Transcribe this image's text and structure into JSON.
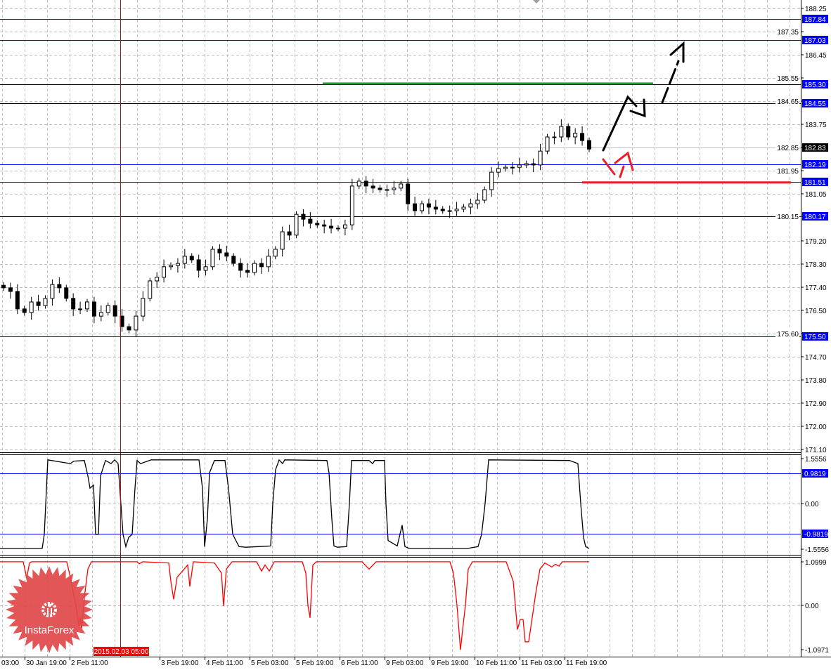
{
  "colors": {
    "level_blue": "#0000ff",
    "level_dark": "#000000",
    "green_target": "#22a030",
    "red_support": "#ee1c24",
    "bull_bear_candle": "#000000",
    "osc1": "#000000",
    "osc2": "#ff0000",
    "crosshair": "#dd0000",
    "logo": "#e0484a"
  },
  "logo": {
    "text": "InstaForex",
    "icon": "gear-person-icon"
  },
  "crosshair": {
    "date_label": "2015.02.03 05:00"
  },
  "chart_data": [
    {
      "type": "candlestick",
      "title": "",
      "ylim": [
        171.1,
        188.25
      ],
      "grid": true,
      "y_ticks": [
        "188.25",
        "187.35",
        "186.45",
        "185.55",
        "184.65",
        "183.75",
        "182.85",
        "181.95",
        "181.05",
        "180.15",
        "179.20",
        "178.30",
        "177.40",
        "176.50",
        "175.60",
        "174.70",
        "173.80",
        "172.90",
        "172.00",
        "171.10"
      ],
      "x_tick_labels": [
        "03:00",
        "30 Jan 19:00",
        "2 Feb 11:00",
        "3 Feb 19:00",
        "4 Feb 11:00",
        "5 Feb 03:00",
        "5 Feb 19:00",
        "6 Feb 11:00",
        "9 Feb 03:00",
        "9 Feb 19:00",
        "10 Feb 11:00",
        "11 Feb 03:00",
        "11 Feb 19:00"
      ],
      "closes": [
        177.38,
        177.24,
        176.56,
        176.42,
        176.83,
        176.69,
        176.97,
        177.51,
        177.38,
        176.97,
        176.56,
        176.56,
        176.83,
        176.28,
        176.42,
        176.69,
        176.28,
        175.87,
        175.74,
        176.28,
        176.97,
        177.65,
        177.79,
        178.2,
        178.25,
        178.33,
        178.61,
        178.47,
        178.06,
        178.2,
        178.88,
        178.74,
        178.61,
        178.33,
        178.06,
        177.98,
        178.33,
        178.2,
        178.61,
        178.88,
        179.56,
        179.43,
        180.24,
        180.05,
        179.89,
        179.83,
        179.78,
        179.7,
        179.7,
        179.83,
        181.34,
        181.53,
        181.34,
        181.26,
        181.2,
        181.2,
        181.26,
        181.42,
        180.65,
        180.38,
        180.65,
        180.52,
        180.44,
        180.38,
        180.38,
        180.44,
        180.52,
        180.65,
        180.79,
        181.2,
        181.88,
        182.02,
        182.07,
        182.07,
        182.16,
        182.21,
        182.16,
        182.7,
        183.25,
        183.25,
        183.66,
        183.25,
        183.39,
        183.11,
        182.78
      ],
      "levels": [
        {
          "value": 187.84,
          "label": "187.84",
          "line": "blue"
        },
        {
          "value": 187.03,
          "label": "187.03",
          "line": "blue"
        },
        {
          "value": 185.3,
          "label": "185.30",
          "line": "dark"
        },
        {
          "value": 184.55,
          "label": "184.55",
          "line": "dark"
        },
        {
          "value": 182.19,
          "label": "182.19",
          "line": "blue"
        },
        {
          "value": 181.51,
          "label": "181.51",
          "line": "blue"
        },
        {
          "value": 180.17,
          "label": "180.17",
          "line": "dark"
        },
        {
          "value": 175.5,
          "label": "175.50",
          "line": "blue"
        }
      ],
      "current_price": {
        "value": 182.83,
        "label": "182.83"
      },
      "target_line": {
        "value": 185.33,
        "color": "green"
      },
      "support_line": {
        "value": 181.48,
        "color": "red"
      },
      "annotations": [
        "black solid arrow up to 185.30 then pullback",
        "black dashed arrow up to 187.03",
        "red arrow bounce above 182.19"
      ]
    },
    {
      "type": "line",
      "ylim": [
        -1.5556,
        1.5556
      ],
      "y_ticks": [
        "1.5556",
        "0.00",
        "-1.5556"
      ],
      "levels": [
        {
          "value": 0.9819,
          "label": "0.9819"
        },
        {
          "value": -0.9819,
          "label": "-0.9819"
        }
      ],
      "series": [
        {
          "points": [
            [
              0,
              -1.46
            ],
            [
              60,
              -1.46
            ],
            [
              63,
              -1.0
            ],
            [
              68,
              1.42
            ],
            [
              100,
              1.3
            ],
            [
              105,
              1.38
            ],
            [
              120,
              1.4
            ],
            [
              125,
              0.9
            ],
            [
              128,
              0.5
            ],
            [
              133,
              0.6
            ],
            [
              136,
              -1.0
            ],
            [
              140,
              -1.0
            ],
            [
              143,
              0.9
            ],
            [
              150,
              1.4
            ],
            [
              158,
              1.3
            ],
            [
              163,
              1.42
            ],
            [
              168,
              1.3
            ],
            [
              171,
              0.3
            ],
            [
              175,
              -1.0
            ],
            [
              179,
              -1.4
            ],
            [
              183,
              -1.1
            ],
            [
              188,
              -1.0
            ],
            [
              192,
              0.5
            ],
            [
              195,
              1.4
            ],
            [
              200,
              1.3
            ],
            [
              215,
              1.42
            ],
            [
              283,
              1.42
            ],
            [
              288,
              0.5
            ],
            [
              291,
              -1.4
            ],
            [
              295,
              -0.5
            ],
            [
              298,
              1.0
            ],
            [
              305,
              1.4
            ],
            [
              320,
              1.4
            ],
            [
              325,
              0.5
            ],
            [
              331,
              -1.0
            ],
            [
              340,
              -1.4
            ],
            [
              350,
              -1.42
            ],
            [
              385,
              -1.38
            ],
            [
              388,
              0
            ],
            [
              392,
              1.1
            ],
            [
              397,
              1.42
            ],
            [
              402,
              1.3
            ],
            [
              405,
              1.42
            ],
            [
              465,
              1.4
            ],
            [
              468,
              1.0
            ],
            [
              472,
              -0.5
            ],
            [
              475,
              -1.38
            ],
            [
              480,
              -1.42
            ],
            [
              493,
              -1.4
            ],
            [
              497,
              0
            ],
            [
              500,
              1.4
            ],
            [
              525,
              1.4
            ],
            [
              530,
              1.3
            ],
            [
              533,
              1.4
            ],
            [
              547,
              1.4
            ],
            [
              549,
              0
            ],
            [
              552,
              -1.2
            ],
            [
              565,
              -1.38
            ],
            [
              572,
              -0.7
            ],
            [
              576,
              -1.4
            ],
            [
              582,
              -1.46
            ],
            [
              665,
              -1.46
            ],
            [
              680,
              -1.4
            ],
            [
              685,
              -1.0
            ],
            [
              690,
              0
            ],
            [
              695,
              1.42
            ],
            [
              810,
              1.4
            ],
            [
              822,
              1.3
            ],
            [
              826,
              0
            ],
            [
              830,
              -1.1
            ],
            [
              833,
              -1.4
            ],
            [
              838,
              -1.46
            ]
          ]
        }
      ]
    },
    {
      "type": "line",
      "ylim": [
        -1.0971,
        1.0999
      ],
      "y_ticks": [
        "1.0999",
        "0.00",
        "-1.0971"
      ],
      "series": [
        {
          "points": [
            [
              0,
              1.08
            ],
            [
              33,
              1.08
            ],
            [
              38,
              0.68
            ],
            [
              42,
              1.05
            ],
            [
              45,
              1.08
            ],
            [
              95,
              1.08
            ],
            [
              100,
              0.7
            ],
            [
              108,
              0.0
            ],
            [
              112,
              -0.5
            ],
            [
              114,
              -0.3
            ],
            [
              116,
              -0.57
            ],
            [
              120,
              0.2
            ],
            [
              125,
              0.9
            ],
            [
              130,
              1.08
            ],
            [
              195,
              1.08
            ],
            [
              198,
              1.03
            ],
            [
              203,
              1.08
            ],
            [
              240,
              1.05
            ],
            [
              243,
              0.6
            ],
            [
              247,
              0.15
            ],
            [
              252,
              0.7
            ],
            [
              267,
              1.0
            ],
            [
              270,
              0.47
            ],
            [
              275,
              1.08
            ],
            [
              305,
              1.05
            ],
            [
              315,
              0.8
            ],
            [
              318,
              -0.02
            ],
            [
              322,
              0.9
            ],
            [
              330,
              1.08
            ],
            [
              365,
              1.08
            ],
            [
              372,
              0.85
            ],
            [
              377,
              1.0
            ],
            [
              383,
              0.85
            ],
            [
              390,
              1.08
            ],
            [
              430,
              1.08
            ],
            [
              435,
              0.8
            ],
            [
              438,
              0.0
            ],
            [
              441,
              -0.31
            ],
            [
              445,
              1.0
            ],
            [
              450,
              1.08
            ],
            [
              515,
              1.08
            ],
            [
              525,
              0.9
            ],
            [
              535,
              1.08
            ],
            [
              640,
              1.08
            ],
            [
              645,
              0.8
            ],
            [
              650,
              0.0
            ],
            [
              655,
              -1.1
            ],
            [
              658,
              -0.6
            ],
            [
              662,
              0.0
            ],
            [
              666,
              0.9
            ],
            [
              672,
              1.08
            ],
            [
              720,
              1.08
            ],
            [
              730,
              0.6
            ],
            [
              733,
              0.0
            ],
            [
              736,
              -0.6
            ],
            [
              740,
              -0.35
            ],
            [
              744,
              -0.35
            ],
            [
              747,
              -0.9
            ],
            [
              752,
              -0.9
            ],
            [
              757,
              -0.3
            ],
            [
              762,
              0.3
            ],
            [
              768,
              0.9
            ],
            [
              775,
              1.05
            ],
            [
              785,
              0.95
            ],
            [
              790,
              1.02
            ],
            [
              795,
              0.97
            ],
            [
              800,
              1.08
            ],
            [
              838,
              1.08
            ]
          ]
        }
      ]
    }
  ]
}
